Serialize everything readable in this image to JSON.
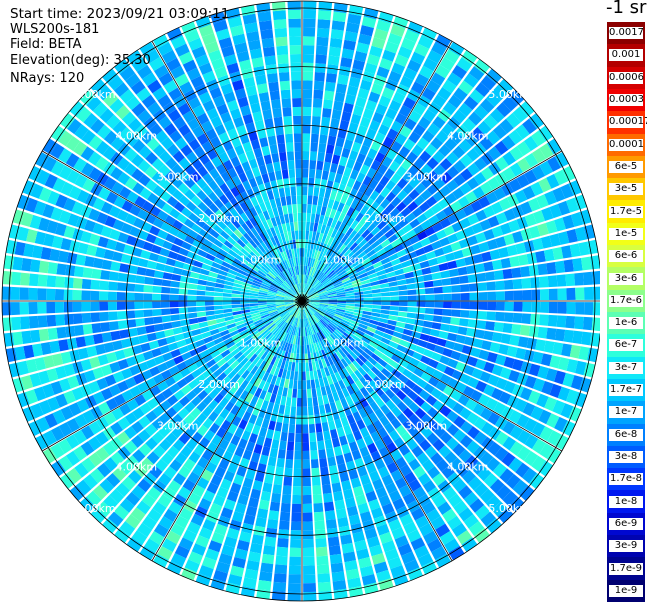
{
  "info": {
    "start_time": "Start time: 2023/09/21 03:09:11",
    "site": "WLS200s-181",
    "field": "Field: BETA",
    "elevation": "Elevation(deg): 35.30",
    "nrays": "NRays: 120"
  },
  "colorbar": {
    "unit": "-1 sr",
    "ticks": [
      "0.0017",
      "0.001",
      "0.0006",
      "0.0003",
      "0.00017",
      "0.0001",
      "6e-5",
      "3e-5",
      "1.7e-5",
      "1e-5",
      "6e-6",
      "3e-6",
      "1.7e-6",
      "1e-6",
      "6e-7",
      "3e-7",
      "1.7e-7",
      "1e-7",
      "6e-8",
      "3e-8",
      "1.7e-8",
      "1e-8",
      "6e-9",
      "3e-9",
      "1.7e-9",
      "1e-9"
    ],
    "colors": [
      "#8b0000",
      "#b30000",
      "#d40000",
      "#f00000",
      "#ff3000",
      "#ff6a00",
      "#ff9a00",
      "#ffc800",
      "#ffec00",
      "#f2ff18",
      "#d8ff40",
      "#b4ff64",
      "#8cff8c",
      "#5cffb4",
      "#2effdc",
      "#10e8f8",
      "#00c8ff",
      "#00a4ff",
      "#0080ff",
      "#005cff",
      "#0038ff",
      "#0018f0",
      "#0008d0",
      "#0004b0",
      "#000490",
      "#000070"
    ]
  },
  "chart_data": {
    "type": "heatmap",
    "projection": "polar PPI",
    "field": "BETA",
    "n_rays": 120,
    "range_rings_km": [
      1,
      2,
      3,
      4,
      5
    ],
    "range_ring_labels": [
      "1.00km",
      "2.00km",
      "3.00km",
      "4.00km",
      "5.00km"
    ],
    "max_range_km": 5.12,
    "azimuth_lines_deg": [
      0,
      30,
      60,
      90,
      120,
      150,
      180,
      210,
      240,
      270,
      300,
      330
    ],
    "value_range": [
      1e-09,
      0.0017
    ],
    "log_scale": true,
    "dominant_values": "mostly 3e-8 to 6e-7 (blue/cyan), higher near center and some outer sectors (~1e-6 to 3e-6)"
  }
}
